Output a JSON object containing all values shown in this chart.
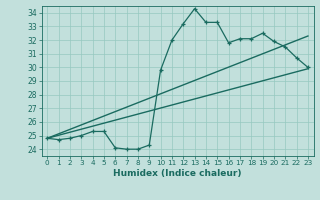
{
  "xlabel": "Humidex (Indice chaleur)",
  "ylabel": "",
  "xlim": [
    -0.5,
    23.5
  ],
  "ylim": [
    23.5,
    34.5
  ],
  "yticks": [
    24,
    25,
    26,
    27,
    28,
    29,
    30,
    31,
    32,
    33,
    34
  ],
  "xticks": [
    0,
    1,
    2,
    3,
    4,
    5,
    6,
    7,
    8,
    9,
    10,
    11,
    12,
    13,
    14,
    15,
    16,
    17,
    18,
    19,
    20,
    21,
    22,
    23
  ],
  "bg_color": "#c2e0dc",
  "grid_color": "#96c8c0",
  "line_color": "#1a6b60",
  "line1_x": [
    0,
    1,
    2,
    3,
    4,
    5,
    6,
    7,
    8,
    9,
    10,
    11,
    12,
    13,
    14,
    15,
    16,
    17,
    18,
    19,
    20,
    21,
    22,
    23
  ],
  "line1_y": [
    24.8,
    24.7,
    24.8,
    25.0,
    25.3,
    25.3,
    24.1,
    24.0,
    24.0,
    24.3,
    29.8,
    32.0,
    33.2,
    34.3,
    33.3,
    33.3,
    31.8,
    32.1,
    32.1,
    32.5,
    31.9,
    31.5,
    30.7,
    30.0
  ],
  "line2_x": [
    0,
    23
  ],
  "line2_y": [
    24.8,
    29.9
  ],
  "line3_x": [
    0,
    23
  ],
  "line3_y": [
    24.8,
    32.3
  ]
}
